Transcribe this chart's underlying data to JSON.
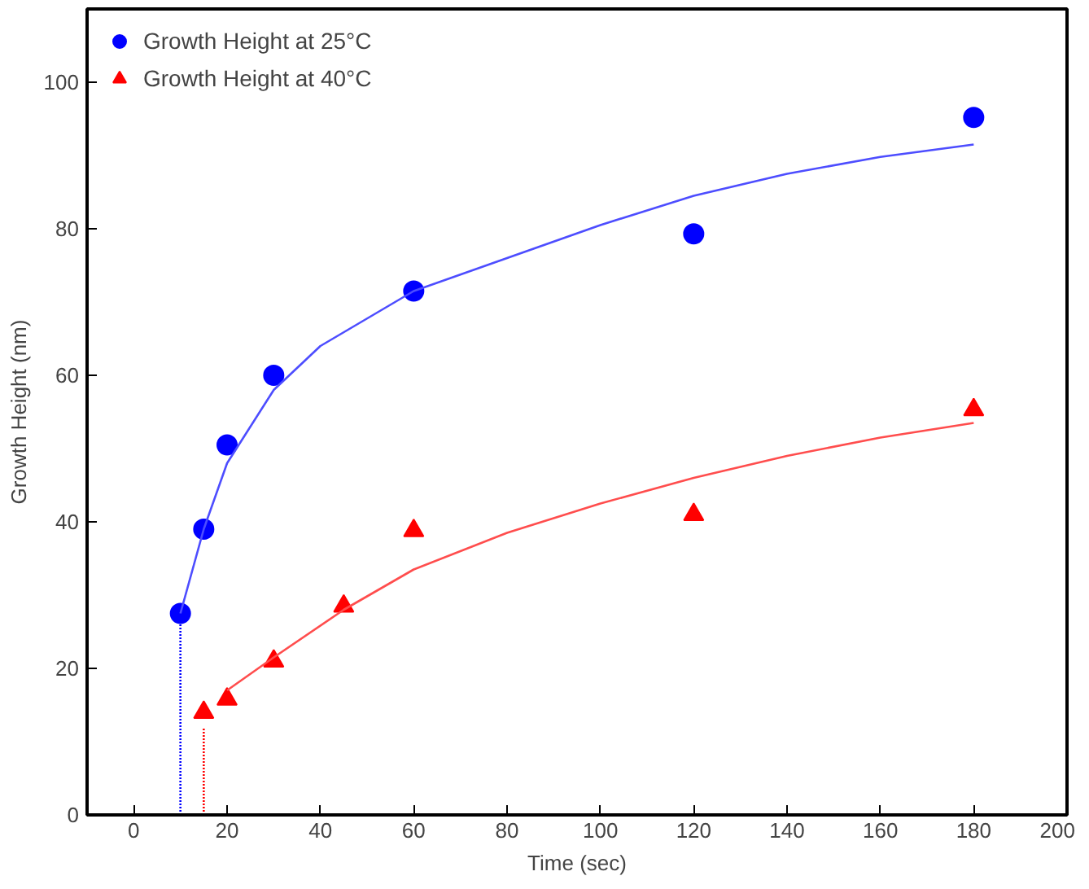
{
  "chart_data": {
    "type": "scatter",
    "xlabel": "Time (sec)",
    "ylabel": "Growth Height (nm)",
    "xlim": [
      -10,
      200
    ],
    "ylim": [
      0,
      110
    ],
    "xticks": [
      0,
      20,
      40,
      60,
      80,
      100,
      120,
      140,
      160,
      180,
      200
    ],
    "yticks": [
      0,
      20,
      40,
      60,
      80,
      100
    ],
    "grid": false,
    "legend": "top left",
    "series": [
      {
        "type": "line",
        "color": "#0000ff",
        "line_style": "dotted",
        "x": [
          10,
          10
        ],
        "values": [
          0,
          27.5
        ]
      },
      {
        "type": "line",
        "color": "#ff0000",
        "line_style": "dotted",
        "x": [
          15,
          15
        ],
        "values": [
          0,
          12
        ]
      },
      {
        "name": "Growth Height at 25°C",
        "color": "#0000ff",
        "marker": "circle",
        "x": [
          10,
          15,
          20,
          30,
          60,
          120,
          180
        ],
        "values": [
          27.5,
          39,
          50.5,
          60,
          71.5,
          79.3,
          95.2
        ]
      },
      {
        "name": "Growth Height at 40°C",
        "color": "#ff0000",
        "marker": "triangle",
        "x": [
          15,
          20,
          30,
          45,
          60,
          120,
          180
        ],
        "values": [
          14,
          15.8,
          21,
          28.5,
          38.8,
          41,
          55.3
        ]
      },
      {
        "type": "line",
        "color": "#4d4dff",
        "line_style": "solid",
        "x": [
          10,
          15,
          20,
          30,
          40,
          60,
          80,
          100,
          120,
          140,
          160,
          180
        ],
        "values": [
          27.5,
          39,
          48,
          58,
          64,
          71.5,
          76,
          80.5,
          84.5,
          87.5,
          89.8,
          91.5
        ]
      },
      {
        "type": "line",
        "color": "#ff4d4d",
        "line_style": "solid",
        "x": [
          20,
          30,
          45,
          60,
          80,
          100,
          120,
          140,
          160,
          180
        ],
        "values": [
          17,
          21.5,
          28,
          33.5,
          38.5,
          42.5,
          46,
          49,
          51.5,
          53.5
        ]
      }
    ]
  }
}
